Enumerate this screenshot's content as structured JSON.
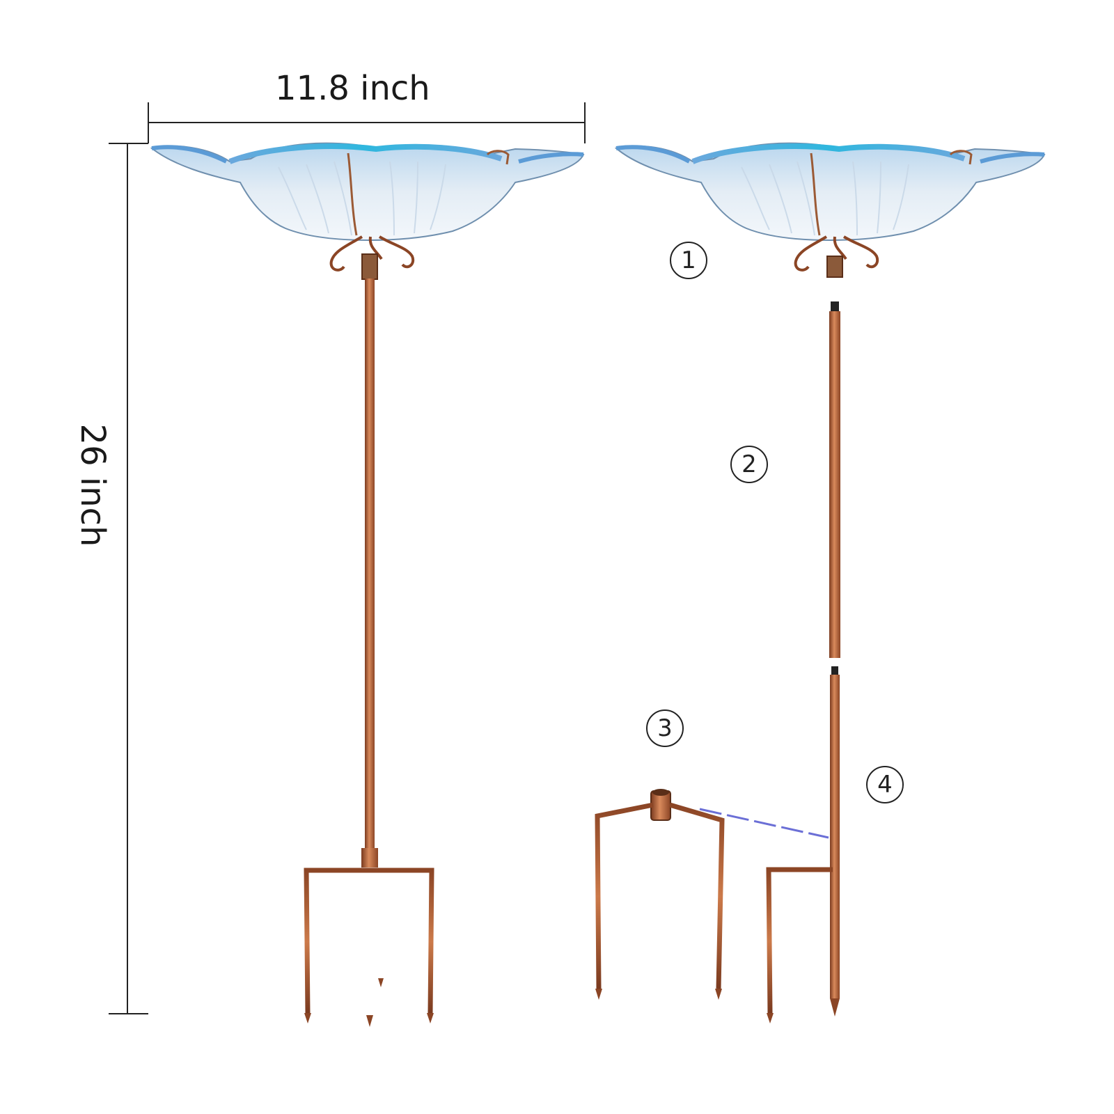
{
  "dimensions": {
    "width_label": "11.8 inch",
    "height_label": "26 inch"
  },
  "steps": [
    {
      "label": "1",
      "part": "glass bowl with copper holder"
    },
    {
      "label": "2",
      "part": "upper pole section"
    },
    {
      "label": "3",
      "part": "three-prong ground stake"
    },
    {
      "label": "4",
      "part": "lower pole section with side prong"
    }
  ],
  "colors": {
    "copper": "#b8623a",
    "copper_dark": "#7a3a1f",
    "copper_light": "#d98a5c",
    "glass_light": "#dfe9f3",
    "glass_blue": "#4d9fd6",
    "glass_teal": "#27b6d9",
    "dimension_line": "#222222",
    "assembly_guide": "#6b6fd6"
  },
  "icons": [
    "circled-number-icon",
    "dimension-arrow-icon"
  ]
}
